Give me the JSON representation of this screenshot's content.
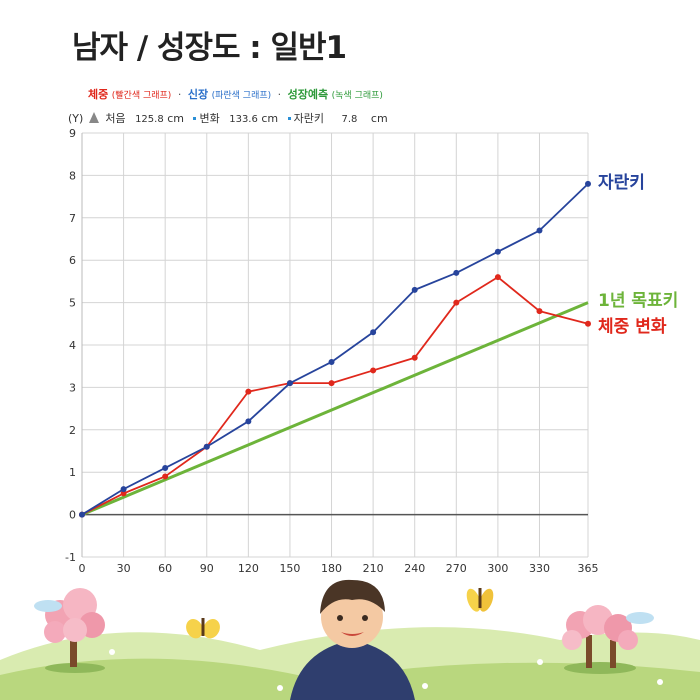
{
  "title": "남자 / 성장도 : 일반1",
  "legend": {
    "weight": "체중",
    "weight_note": "(빨간색 그래프)",
    "height": "신장",
    "height_note": "(파란색 그래프)",
    "predict": "성장예측",
    "predict_note": "(녹색 그래프)",
    "separator": "·"
  },
  "info": {
    "y_marker": "(Y)",
    "start_label": "처음",
    "start_value": "125.8",
    "start_unit": "cm",
    "change_label": "변화",
    "change_value": "133.6",
    "change_unit": "cm",
    "growth_label": "자란키",
    "growth_value": "7.8",
    "growth_unit": "cm"
  },
  "colors": {
    "height": "#27449c",
    "weight": "#e0281c",
    "target": "#6db43a",
    "grid": "#d4d4d4",
    "zero_line": "#555555"
  },
  "chart_data": {
    "type": "line",
    "x": [
      0,
      30,
      60,
      90,
      120,
      150,
      180,
      210,
      240,
      270,
      300,
      330,
      365
    ],
    "xlim": [
      0,
      365
    ],
    "ylim": [
      -1,
      9
    ],
    "xticks": [
      0,
      30,
      60,
      90,
      120,
      150,
      180,
      210,
      240,
      270,
      300,
      330,
      365
    ],
    "yticks": [
      -1,
      0,
      1,
      2,
      3,
      4,
      5,
      6,
      7,
      8,
      9
    ],
    "grid": true,
    "series": [
      {
        "name": "자란키",
        "color": "#27449c",
        "markers": true,
        "values": [
          0,
          0.6,
          1.1,
          1.6,
          2.2,
          3.1,
          3.6,
          4.3,
          5.3,
          5.7,
          6.2,
          6.7,
          7.8
        ]
      },
      {
        "name": "체중 변화",
        "color": "#e0281c",
        "markers": true,
        "values": [
          0,
          0.5,
          0.9,
          1.6,
          2.9,
          3.1,
          3.1,
          3.4,
          3.7,
          5.0,
          5.6,
          4.8,
          4.5
        ]
      },
      {
        "name": "1년 목표키",
        "color": "#6db43a",
        "markers": false,
        "x": [
          0,
          365
        ],
        "values": [
          0,
          5.0
        ]
      }
    ]
  }
}
